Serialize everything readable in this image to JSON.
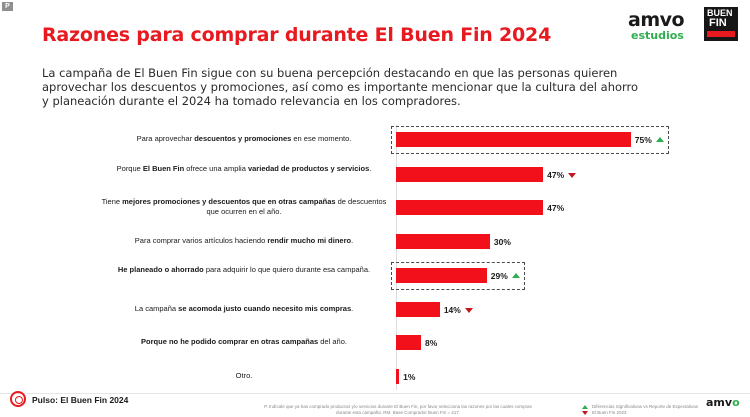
{
  "badge": "P",
  "title": "Razones para comprar durante El Buen Fin 2024",
  "logos": {
    "amvo": "amvo",
    "amvo_sub": "estudios",
    "buenfin_1": "BUEN",
    "buenfin_2": "FIN"
  },
  "intro": "La campaña de El Buen Fin sigue con su buena percepción destacando en que las personas quieren aprovechar los descuentos y promociones, así como es importante mencionar que la cultura del ahorro y planeación durante el 2024 ha tomado relevancia en los compradores.",
  "chart_data": {
    "type": "bar",
    "orientation": "horizontal",
    "categories": [
      "Para aprovechar descuentos y promociones en ese momento.",
      "Porque El Buen Fin ofrece una amplia variedad de productos y servicios.",
      "Tiene mejores promociones y descuentos que en otras campañas de descuentos que ocurren en el año.",
      "Para comprar varios artículos haciendo rendir mucho mi dinero.",
      "He planeado o ahorrado para adquirir lo que quiero durante esa campaña.",
      "La campaña se acomoda justo cuando necesito mis compras.",
      "Porque no he podido comprar en otras campañas del año.",
      "Otro."
    ],
    "values": [
      75,
      47,
      47,
      30,
      29,
      14,
      8,
      1
    ],
    "value_labels": [
      "75%",
      "47%",
      "47%",
      "30%",
      "29%",
      "14%",
      "8%",
      "1%"
    ],
    "trend": [
      "up",
      "down",
      "",
      "",
      "up",
      "down",
      "",
      ""
    ],
    "highlighted": [
      true,
      false,
      false,
      false,
      true,
      false,
      false,
      false
    ],
    "bar_color": "#f2111a",
    "up_color": "#2eae4f",
    "down_color": "#c4161c",
    "xlim": [
      0,
      80
    ]
  },
  "footer": {
    "pulse": "Pulso: El Buen Fin 2024",
    "note": "P. Indícale que ya has comprado productos y/o servicios durante El Buen Fin, por favor selecciona las razones por las cuales compras durante esta campaña. RM. Base Comprador Buen Fin = 417.",
    "legend": "Diferencias Significativas vs Reporte de Expectativas El Buen Fin 2023",
    "amvo_a": "amv",
    "amvo_b": "o"
  }
}
